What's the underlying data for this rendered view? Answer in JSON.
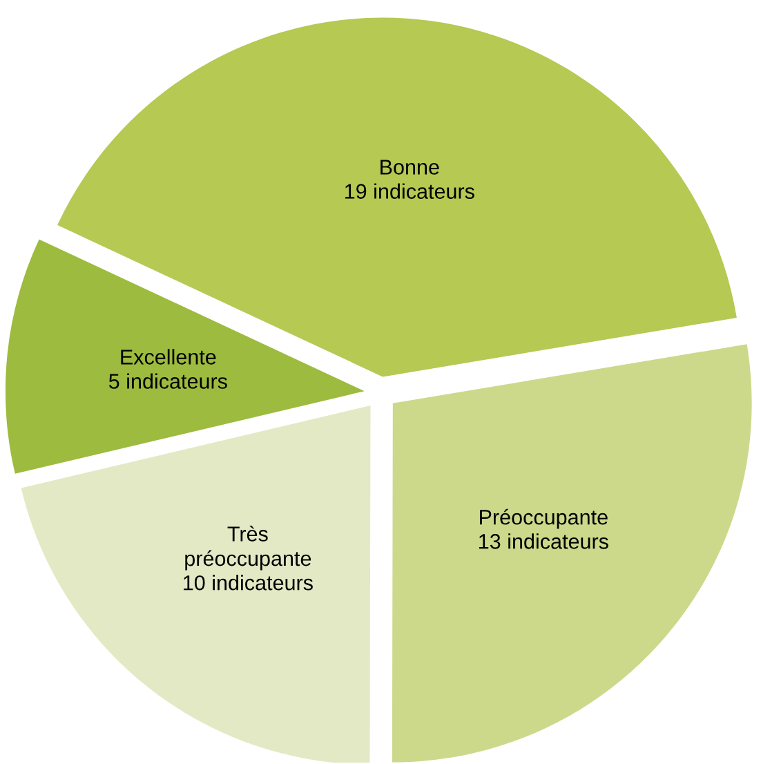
{
  "chart_data": {
    "type": "pie",
    "categories": [
      "Bonne",
      "Préoccupante",
      "Très préoccupante",
      "Excellente"
    ],
    "values": [
      19,
      13,
      10,
      5
    ],
    "value_labels": [
      "19 indicateurs",
      "13 indicateurs",
      "10 indicateurs",
      "5 indicateurs"
    ],
    "colors": [
      "#b5c953",
      "#ccd98b",
      "#e4e9c5",
      "#9dbb3e"
    ],
    "legend": false
  }
}
